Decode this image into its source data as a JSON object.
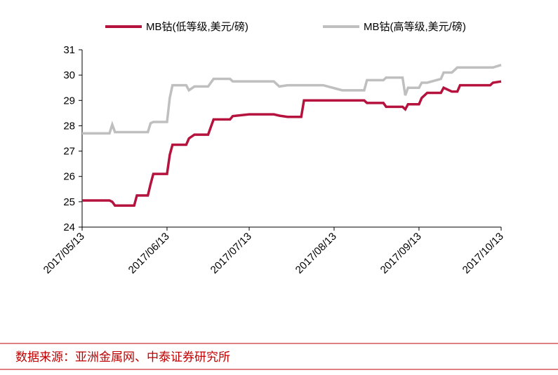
{
  "chart_data": {
    "type": "line",
    "x": [
      "2017/05/13",
      "2017/05/23",
      "2017/05/24",
      "2017/05/25",
      "2017/06/01",
      "2017/06/02",
      "2017/06/06",
      "2017/06/07",
      "2017/06/08",
      "2017/06/13",
      "2017/06/14",
      "2017/06/15",
      "2017/06/20",
      "2017/06/21",
      "2017/06/23",
      "2017/06/28",
      "2017/06/30",
      "2017/07/06",
      "2017/07/07",
      "2017/07/13",
      "2017/07/22",
      "2017/07/24",
      "2017/07/27",
      "2017/08/01",
      "2017/08/02",
      "2017/08/09",
      "2017/08/16",
      "2017/08/24",
      "2017/08/25",
      "2017/08/31",
      "2017/09/01",
      "2017/09/07",
      "2017/09/08",
      "2017/09/09",
      "2017/09/13",
      "2017/09/14",
      "2017/09/16",
      "2017/09/21",
      "2017/09/22",
      "2017/09/25",
      "2017/09/27",
      "2017/09/28",
      "2017/10/09",
      "2017/10/10",
      "2017/10/13"
    ],
    "series": [
      {
        "name": "MB钴(低等级,美元/磅)",
        "color": "#b5123e",
        "values": [
          25.05,
          25.05,
          25.0,
          24.85,
          24.85,
          25.25,
          25.25,
          25.7,
          26.1,
          26.1,
          26.85,
          27.25,
          27.25,
          27.5,
          27.65,
          27.65,
          28.25,
          28.25,
          28.38,
          28.45,
          28.45,
          28.4,
          28.35,
          28.35,
          29.0,
          29.0,
          29.0,
          29.0,
          28.9,
          28.9,
          28.75,
          28.75,
          28.65,
          28.85,
          28.85,
          29.1,
          29.3,
          29.3,
          29.5,
          29.35,
          29.35,
          29.6,
          29.6,
          29.7,
          29.75
        ]
      },
      {
        "name": "MB钴(高等级,美元/磅)",
        "color": "#bfbfbf",
        "values": [
          27.7,
          27.7,
          28.05,
          27.75,
          27.75,
          27.75,
          27.75,
          28.1,
          28.15,
          28.15,
          29.1,
          29.6,
          29.6,
          29.4,
          29.55,
          29.55,
          29.85,
          29.85,
          29.75,
          29.75,
          29.75,
          29.55,
          29.6,
          29.6,
          29.6,
          29.6,
          29.4,
          29.4,
          29.8,
          29.8,
          29.9,
          29.9,
          29.2,
          29.5,
          29.5,
          29.7,
          29.7,
          29.85,
          30.1,
          30.1,
          30.3,
          30.3,
          30.3,
          30.3,
          30.4
        ]
      }
    ],
    "xlim": [
      "2017/05/13",
      "2017/10/13"
    ],
    "xticks": [
      "2017/05/13",
      "2017/06/13",
      "2017/07/13",
      "2017/08/13",
      "2017/09/13",
      "2017/10/13"
    ],
    "ylim": [
      24,
      31
    ],
    "yticks": [
      24,
      25,
      26,
      27,
      28,
      29,
      30,
      31
    ],
    "grid": false,
    "legend": "top"
  },
  "source": "数据来源：亚洲金属网、中泰证券研究所"
}
